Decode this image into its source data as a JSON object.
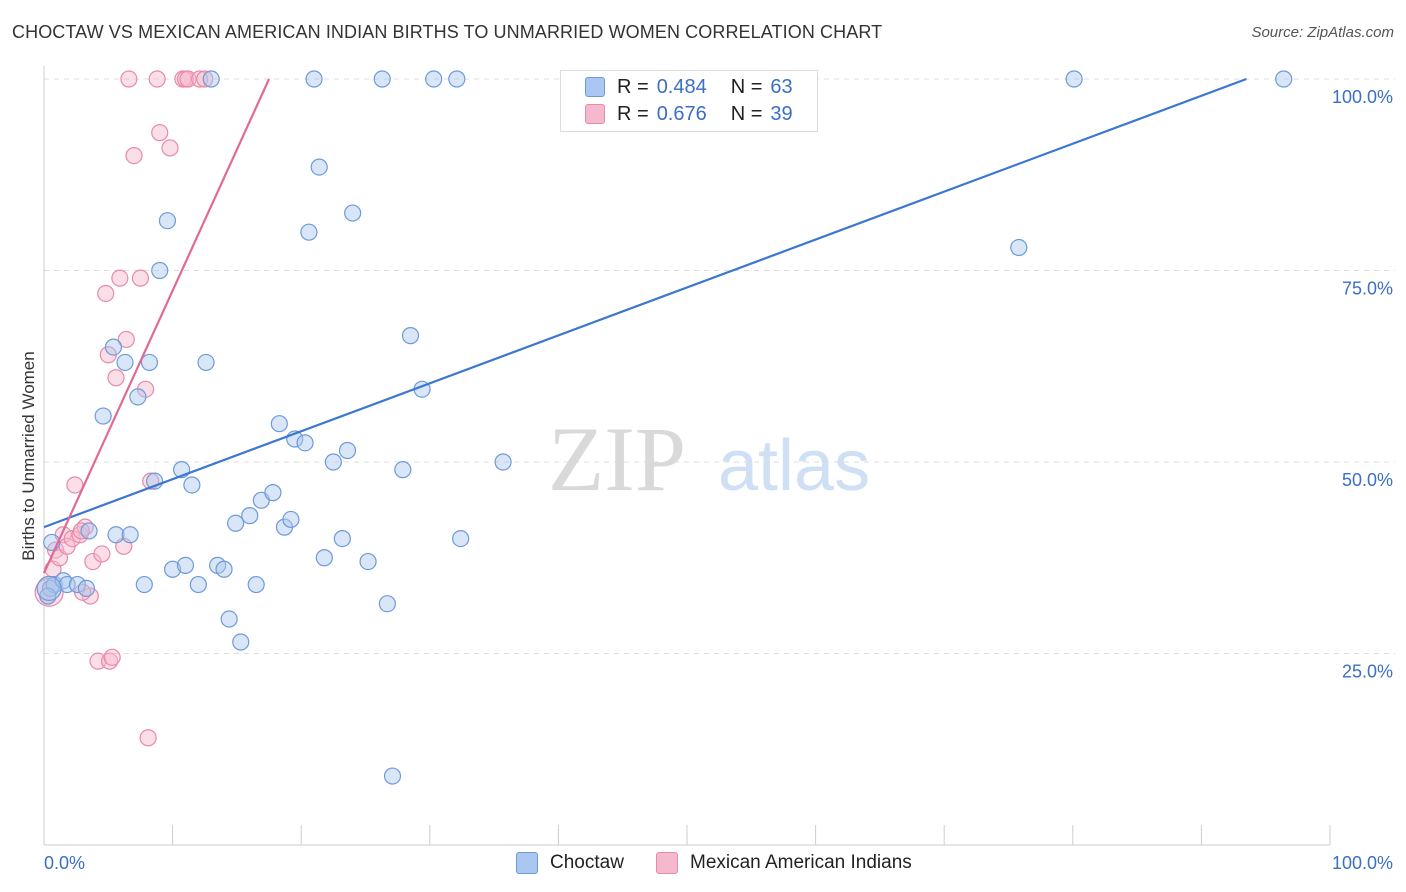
{
  "title": "CHOCTAW VS MEXICAN AMERICAN INDIAN BIRTHS TO UNMARRIED WOMEN CORRELATION CHART",
  "source": "Source: ZipAtlas.com",
  "watermark": {
    "zip": "ZIP",
    "atlas": "atlas"
  },
  "legend_top": {
    "rows": [
      {
        "r_label": "R =",
        "r_value": "0.484",
        "n_label": "N =",
        "n_value": "63"
      },
      {
        "r_label": "R =",
        "r_value": "0.676",
        "n_label": "N =",
        "n_value": "39"
      }
    ]
  },
  "legend_bottom": {
    "series1": "Choctaw",
    "series2": "Mexican American Indians"
  },
  "colors": {
    "blue_fill": "#a9c7f0",
    "blue_stroke": "#6f9ad8",
    "blue_line": "#3b78d0",
    "pink_fill": "#f6b8cc",
    "pink_stroke": "#e88aa8",
    "pink_line": "#e06a97",
    "tick_label": "#3a6fc4",
    "grid": "#dddddd"
  },
  "chart_data": {
    "type": "scatter",
    "title": "CHOCTAW VS MEXICAN AMERICAN INDIAN BIRTHS TO UNMARRIED WOMEN CORRELATION CHART",
    "xlabel": "",
    "ylabel": "Births to Unmarried Women",
    "xlim": [
      0,
      100
    ],
    "ylim": [
      0,
      102
    ],
    "x_tick_labels": [
      "0.0%",
      "100.0%"
    ],
    "y_tick_labels": [
      "25.0%",
      "50.0%",
      "75.0%",
      "100.0%"
    ],
    "y_ticks": [
      25,
      50,
      75,
      100
    ],
    "grid": true,
    "legend_position": "top-center",
    "series": [
      {
        "name": "Choctaw",
        "r": 0.484,
        "n": 63,
        "trend": {
          "x1": 0,
          "y1": 41.5,
          "x2": 93.5,
          "y2": 100
        },
        "points": [
          [
            0.5,
            33.5
          ],
          [
            0.8,
            34.0
          ],
          [
            0.3,
            32.5
          ],
          [
            0.6,
            39.5
          ],
          [
            1.5,
            34.5
          ],
          [
            1.8,
            34.0
          ],
          [
            2.6,
            34.0
          ],
          [
            3.3,
            33.5
          ],
          [
            3.5,
            41.0
          ],
          [
            4.6,
            56.0
          ],
          [
            5.4,
            65.0
          ],
          [
            5.6,
            40.5
          ],
          [
            6.3,
            63.0
          ],
          [
            6.7,
            40.5
          ],
          [
            7.3,
            58.5
          ],
          [
            7.8,
            34.0
          ],
          [
            8.2,
            63.0
          ],
          [
            8.6,
            47.5
          ],
          [
            9.0,
            75.0
          ],
          [
            9.6,
            81.5
          ],
          [
            10.0,
            36.0
          ],
          [
            10.7,
            49.0
          ],
          [
            11.0,
            36.5
          ],
          [
            11.5,
            47.0
          ],
          [
            12.0,
            34.0
          ],
          [
            12.6,
            63.0
          ],
          [
            13.0,
            100
          ],
          [
            13.5,
            36.5
          ],
          [
            14.0,
            36.0
          ],
          [
            14.4,
            29.5
          ],
          [
            14.9,
            42.0
          ],
          [
            15.3,
            26.5
          ],
          [
            16.0,
            43.0
          ],
          [
            16.5,
            34.0
          ],
          [
            16.9,
            45.0
          ],
          [
            17.8,
            46.0
          ],
          [
            18.3,
            55.0
          ],
          [
            18.7,
            41.5
          ],
          [
            19.2,
            42.5
          ],
          [
            19.5,
            53.0
          ],
          [
            20.3,
            52.5
          ],
          [
            20.6,
            80.0
          ],
          [
            21.0,
            100
          ],
          [
            21.4,
            88.5
          ],
          [
            21.8,
            37.5
          ],
          [
            22.5,
            50.0
          ],
          [
            23.2,
            40.0
          ],
          [
            23.6,
            51.5
          ],
          [
            24.0,
            82.5
          ],
          [
            25.2,
            37.0
          ],
          [
            26.7,
            31.5
          ],
          [
            27.1,
            9.0
          ],
          [
            27.9,
            49.0
          ],
          [
            28.5,
            66.5
          ],
          [
            29.4,
            59.5
          ],
          [
            26.3,
            100
          ],
          [
            30.3,
            100
          ],
          [
            32.1,
            100
          ],
          [
            32.4,
            40.0
          ],
          [
            35.7,
            50.0
          ],
          [
            75.8,
            78.0
          ],
          [
            80.1,
            100
          ],
          [
            96.4,
            100
          ]
        ]
      },
      {
        "name": "Mexican American Indians",
        "r": 0.676,
        "n": 39,
        "trend": {
          "x1": 0,
          "y1": 35.5,
          "x2": 17.5,
          "y2": 100
        },
        "points": [
          [
            0.3,
            32.5
          ],
          [
            0.5,
            33.5
          ],
          [
            0.7,
            36.0
          ],
          [
            0.9,
            38.5
          ],
          [
            1.2,
            37.5
          ],
          [
            1.5,
            40.5
          ],
          [
            1.8,
            39.0
          ],
          [
            2.2,
            40.0
          ],
          [
            2.4,
            47.0
          ],
          [
            2.8,
            40.5
          ],
          [
            3.2,
            41.5
          ],
          [
            3.6,
            32.5
          ],
          [
            3.8,
            37.0
          ],
          [
            4.2,
            24.0
          ],
          [
            4.5,
            38.0
          ],
          [
            4.8,
            72.0
          ],
          [
            5.1,
            24.0
          ],
          [
            5.3,
            24.5
          ],
          [
            5.6,
            61.0
          ],
          [
            5.9,
            74.0
          ],
          [
            6.2,
            39.0
          ],
          [
            6.4,
            66.0
          ],
          [
            6.6,
            100
          ],
          [
            7.0,
            90.0
          ],
          [
            7.5,
            74.0
          ],
          [
            7.9,
            59.5
          ],
          [
            8.1,
            14.0
          ],
          [
            8.3,
            47.5
          ],
          [
            8.8,
            100
          ],
          [
            9.0,
            93.0
          ],
          [
            9.8,
            91.0
          ],
          [
            10.8,
            100
          ],
          [
            11.0,
            100
          ],
          [
            11.2,
            100
          ],
          [
            12.1,
            100
          ],
          [
            12.5,
            100
          ],
          [
            5.0,
            64.0
          ],
          [
            2.9,
            41.0
          ],
          [
            3.0,
            33.0
          ]
        ]
      }
    ]
  }
}
